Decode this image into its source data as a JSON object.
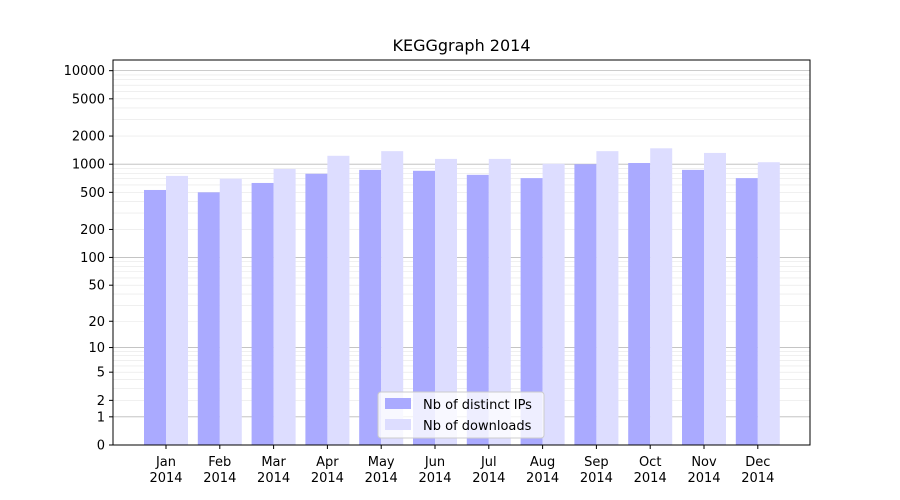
{
  "chart_data": {
    "type": "bar",
    "title": "KEGGgraph 2014",
    "xlabel": "",
    "ylabel": "",
    "yscale": "log(1+x)",
    "ylim": [
      0,
      13000
    ],
    "yticks": [
      0,
      1,
      2,
      5,
      10,
      20,
      50,
      100,
      200,
      500,
      1000,
      2000,
      5000,
      10000
    ],
    "grid": true,
    "legend_position": "bottom-center",
    "categories": [
      [
        "Jan",
        "2014"
      ],
      [
        "Feb",
        "2014"
      ],
      [
        "Mar",
        "2014"
      ],
      [
        "Apr",
        "2014"
      ],
      [
        "May",
        "2014"
      ],
      [
        "Jun",
        "2014"
      ],
      [
        "Jul",
        "2014"
      ],
      [
        "Aug",
        "2014"
      ],
      [
        "Sep",
        "2014"
      ],
      [
        "Oct",
        "2014"
      ],
      [
        "Nov",
        "2014"
      ],
      [
        "Dec",
        "2014"
      ]
    ],
    "series": [
      {
        "name": "Nb of distinct IPs",
        "color": "#aaaaff",
        "values": [
          530,
          500,
          630,
          790,
          870,
          850,
          770,
          710,
          1000,
          1030,
          870,
          710
        ]
      },
      {
        "name": "Nb of downloads",
        "color": "#ddddff",
        "values": [
          750,
          700,
          890,
          1230,
          1380,
          1140,
          1140,
          1010,
          1380,
          1480,
          1320,
          1050
        ]
      }
    ]
  }
}
